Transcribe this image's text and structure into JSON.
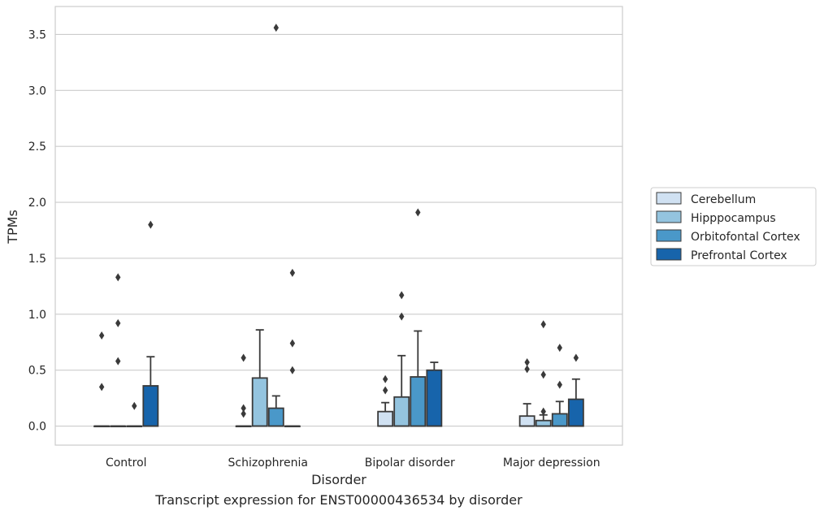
{
  "caption": "Transcript expression for ENST00000436534 by disorder",
  "chart_data": {
    "type": "box",
    "xlabel": "Disorder",
    "ylabel": "TPMs",
    "ylim": [
      -0.17,
      3.75
    ],
    "yticks": [
      0.0,
      0.5,
      1.0,
      1.5,
      2.0,
      2.5,
      3.0,
      3.5
    ],
    "ytick_labels": [
      "0.0",
      "0.5",
      "1.0",
      "1.5",
      "2.0",
      "2.5",
      "3.0",
      "3.5"
    ],
    "grid": "horizontal",
    "legend_position": "right",
    "categories": [
      "Control",
      "Schizophrenia",
      "Bipolar disorder",
      "Major depression"
    ],
    "series": [
      {
        "name": "Cerebellum",
        "color": "#d0e1f2",
        "boxes": [
          {
            "q1": 0.0,
            "median": 0.0,
            "q3": 0.0,
            "whisker_low": 0.0,
            "whisker_high": 0.0,
            "outliers": [
              0.81,
              0.35
            ]
          },
          {
            "q1": 0.0,
            "median": 0.0,
            "q3": 0.0,
            "whisker_low": 0.0,
            "whisker_high": 0.0,
            "outliers": [
              0.61,
              0.16,
              0.11
            ]
          },
          {
            "q1": 0.0,
            "median": 0.0,
            "q3": 0.13,
            "whisker_low": 0.0,
            "whisker_high": 0.21,
            "outliers": [
              0.42,
              0.32
            ]
          },
          {
            "q1": 0.0,
            "median": 0.0,
            "q3": 0.09,
            "whisker_low": 0.0,
            "whisker_high": 0.2,
            "outliers": [
              0.57,
              0.51
            ]
          }
        ]
      },
      {
        "name": "Hipppocampus",
        "color": "#94c4df",
        "boxes": [
          {
            "q1": 0.0,
            "median": 0.0,
            "q3": 0.0,
            "whisker_low": 0.0,
            "whisker_high": 0.0,
            "outliers": [
              1.33,
              0.92,
              0.58
            ]
          },
          {
            "q1": 0.0,
            "median": 0.0,
            "q3": 0.43,
            "whisker_low": 0.0,
            "whisker_high": 0.86,
            "outliers": []
          },
          {
            "q1": 0.0,
            "median": 0.0,
            "q3": 0.26,
            "whisker_low": 0.0,
            "whisker_high": 0.63,
            "outliers": [
              1.17,
              0.98
            ]
          },
          {
            "q1": 0.0,
            "median": 0.0,
            "q3": 0.05,
            "whisker_low": 0.0,
            "whisker_high": 0.1,
            "outliers": [
              0.91,
              0.46,
              0.13
            ]
          }
        ]
      },
      {
        "name": "Orbitofontal Cortex",
        "color": "#4a98c9",
        "boxes": [
          {
            "q1": 0.0,
            "median": 0.0,
            "q3": 0.0,
            "whisker_low": 0.0,
            "whisker_high": 0.0,
            "outliers": [
              0.18
            ]
          },
          {
            "q1": 0.0,
            "median": 0.0,
            "q3": 0.16,
            "whisker_low": 0.0,
            "whisker_high": 0.27,
            "outliers": [
              3.56
            ]
          },
          {
            "q1": 0.0,
            "median": 0.0,
            "q3": 0.44,
            "whisker_low": 0.0,
            "whisker_high": 0.85,
            "outliers": [
              1.91
            ]
          },
          {
            "q1": 0.0,
            "median": 0.0,
            "q3": 0.11,
            "whisker_low": 0.0,
            "whisker_high": 0.22,
            "outliers": [
              0.7,
              0.37
            ]
          }
        ]
      },
      {
        "name": "Prefrontal Cortex",
        "color": "#1764ab",
        "boxes": [
          {
            "q1": 0.0,
            "median": 0.0,
            "q3": 0.36,
            "whisker_low": 0.0,
            "whisker_high": 0.62,
            "outliers": [
              1.8
            ]
          },
          {
            "q1": 0.0,
            "median": 0.0,
            "q3": 0.0,
            "whisker_low": 0.0,
            "whisker_high": 0.0,
            "outliers": [
              1.37,
              0.74,
              0.5
            ]
          },
          {
            "q1": 0.0,
            "median": 0.0,
            "q3": 0.5,
            "whisker_low": 0.0,
            "whisker_high": 0.57,
            "outliers": []
          },
          {
            "q1": 0.0,
            "median": 0.0,
            "q3": 0.24,
            "whisker_low": 0.0,
            "whisker_high": 0.42,
            "outliers": [
              0.61
            ]
          }
        ]
      }
    ]
  }
}
